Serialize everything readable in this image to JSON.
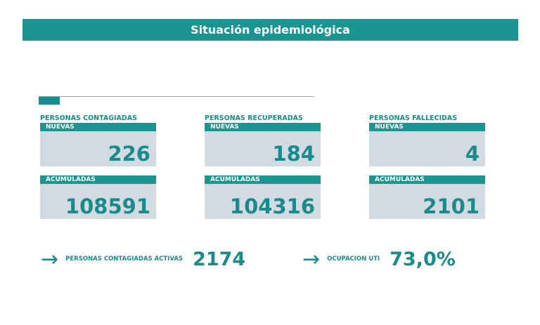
{
  "title": "Situación epidemiológica",
  "cards": [
    {
      "label": "PERSONAS CONTAGIADAS",
      "new_label": "NUEVAS",
      "new": "226",
      "acc_label": "ACUMULADAS",
      "acc": "108591"
    },
    {
      "label": "PERSONAS RECUPERADAS",
      "new_label": "NUEVAS",
      "new": "184",
      "acc_label": "ACUMULADAS",
      "acc": "104316"
    },
    {
      "label": "PERSONAS FALLECIDAS",
      "new_label": "NUEVAS",
      "new": "4",
      "acc_label": "ACUMULADAS",
      "acc": "2101"
    }
  ],
  "bottom": [
    {
      "icon": "arrow-right-icon",
      "label": "PERSONAS CONTAGIADAS ACTIVAS",
      "value": "2174"
    },
    {
      "icon": "arrow-right-icon",
      "label": "OCUPACION UTI",
      "value": "73,0%"
    }
  ],
  "colors": {
    "accent": "#1a9591",
    "card_bg": "#d3dbe2"
  }
}
